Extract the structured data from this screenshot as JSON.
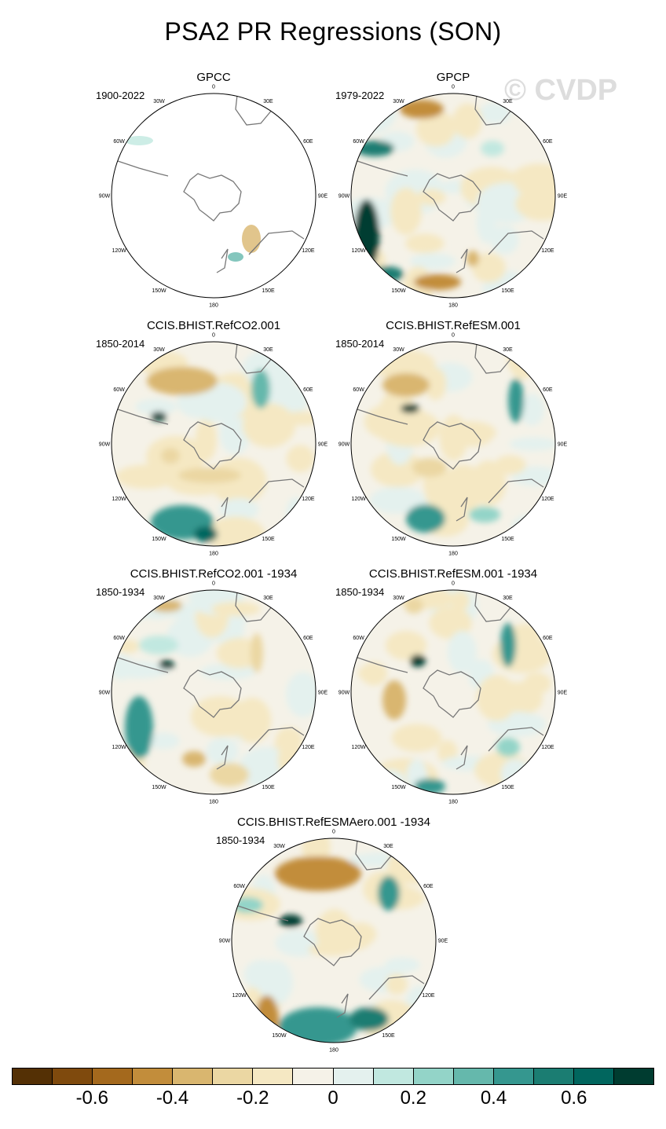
{
  "title": "PSA2 PR Regressions (SON)",
  "watermark": "© CVDP",
  "maps": [
    {
      "name": "GPCC",
      "period": "1900-2022"
    },
    {
      "name": "GPCP",
      "period": "1979-2022"
    },
    {
      "name": "CCIS.BHIST.RefCO2.001",
      "period": "1850-2014"
    },
    {
      "name": "CCIS.BHIST.RefESM.001",
      "period": "1850-2014"
    },
    {
      "name": "CCIS.BHIST.RefCO2.001 -1934",
      "period": "1850-1934"
    },
    {
      "name": "CCIS.BHIST.RefESM.001 -1934",
      "period": "1850-1934"
    },
    {
      "name": "CCIS.BHIST.RefESMAero.001 -1934",
      "period": "1850-1934"
    }
  ],
  "longitude_labels": [
    "0",
    "30E",
    "60E",
    "90E",
    "120E",
    "150E",
    "180",
    "150W",
    "120W",
    "90W",
    "60W",
    "30W"
  ],
  "colorbar": {
    "colors": [
      "#543005",
      "#7f4a0d",
      "#a4691d",
      "#c28d3b",
      "#d9b66f",
      "#ebd7a3",
      "#f5e8c3",
      "#f5f2e8",
      "#e4f1ee",
      "#c1e8e0",
      "#93d4c8",
      "#65b8ac",
      "#35978f",
      "#1b7d72",
      "#01665e",
      "#003c30"
    ],
    "tick_labels": [
      "-0.6",
      "-0.4",
      "-0.2",
      "0",
      "0.2",
      "0.4",
      "0.6"
    ],
    "tick_values": [
      -0.6,
      -0.4,
      -0.2,
      0,
      0.2,
      0.4,
      0.6
    ]
  }
}
